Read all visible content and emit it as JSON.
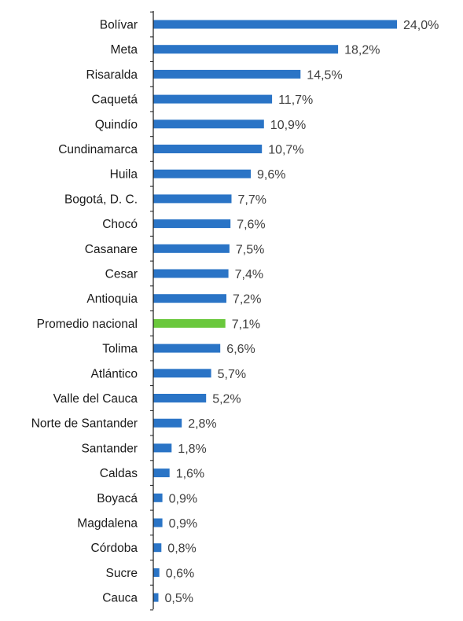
{
  "chart_data": {
    "type": "bar",
    "orientation": "horizontal",
    "title": "",
    "xlabel": "",
    "ylabel": "",
    "xlim": [
      0,
      24
    ],
    "grid": false,
    "legend": "none",
    "categories": [
      "Bolívar",
      "Meta",
      "Risaralda",
      "Caquetá",
      "Quindío",
      "Cundinamarca",
      "Huila",
      "Bogotá, D. C.",
      "Chocó",
      "Casanare",
      "Cesar",
      "Antioquia",
      "Promedio nacional",
      "Tolima",
      "Atlántico",
      "Valle del Cauca",
      "Norte de Santander",
      "Santander",
      "Caldas",
      "Boyacá",
      "Magdalena",
      "Córdoba",
      "Sucre",
      "Cauca"
    ],
    "values": [
      24.0,
      18.2,
      14.5,
      11.7,
      10.9,
      10.7,
      9.6,
      7.7,
      7.6,
      7.5,
      7.4,
      7.2,
      7.1,
      6.6,
      5.7,
      5.2,
      2.8,
      1.8,
      1.6,
      0.9,
      0.9,
      0.8,
      0.6,
      0.5
    ],
    "value_labels": [
      "24,0%",
      "18,2%",
      "14,5%",
      "11,7%",
      "10,9%",
      "10,7%",
      "9,6%",
      "7,7%",
      "7,6%",
      "7,5%",
      "7,4%",
      "7,2%",
      "7,1%",
      "6,6%",
      "5,7%",
      "5,2%",
      "2,8%",
      "1,8%",
      "1,6%",
      "0,9%",
      "0,9%",
      "0,8%",
      "0,6%",
      "0,5%"
    ],
    "highlight_category": "Promedio nacional",
    "colors": {
      "bar": "#2a74c6",
      "highlight": "#6ac83c",
      "axis": "#1a1a1a"
    }
  }
}
